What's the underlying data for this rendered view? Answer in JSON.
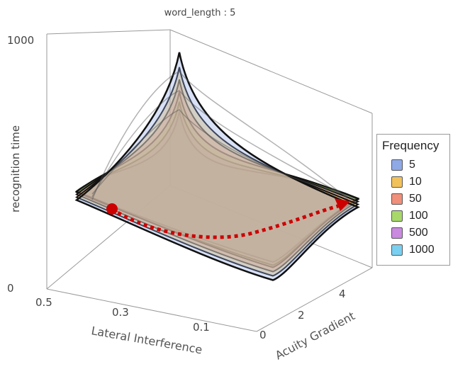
{
  "chart_data": {
    "type": "3d-surface",
    "title": "word_length : 5",
    "zlabel": "recognition time",
    "xlabel": "Lateral Interference",
    "ylabel": "Acuity Gradient",
    "zlim": [
      0,
      1000
    ],
    "z_ticks": [
      "1000",
      "0"
    ],
    "x_ticks": [
      "0.5",
      "0.3",
      "0.1"
    ],
    "y_ticks": [
      "0",
      "2",
      "4"
    ],
    "legend": {
      "title": "Frequency",
      "items": [
        {
          "label": "5",
          "color": "#8fa8e6"
        },
        {
          "label": "10",
          "color": "#f2c25a"
        },
        {
          "label": "50",
          "color": "#f0907a"
        },
        {
          "label": "100",
          "color": "#a8d86a"
        },
        {
          "label": "500",
          "color": "#c98ae0"
        },
        {
          "label": "1000",
          "color": "#7ad0f0"
        }
      ]
    },
    "series": [
      {
        "name": "5",
        "peak": 960,
        "corner": 620
      },
      {
        "name": "10",
        "peak": 900,
        "corner": 600
      },
      {
        "name": "50",
        "peak": 850,
        "corner": 580
      },
      {
        "name": "100",
        "peak": 800,
        "corner": 560
      },
      {
        "name": "500",
        "peak": 760,
        "corner": 520
      },
      {
        "name": "1000",
        "peak": 720,
        "corner": 490
      }
    ],
    "annotation": "dotted red arrow across top surface"
  }
}
